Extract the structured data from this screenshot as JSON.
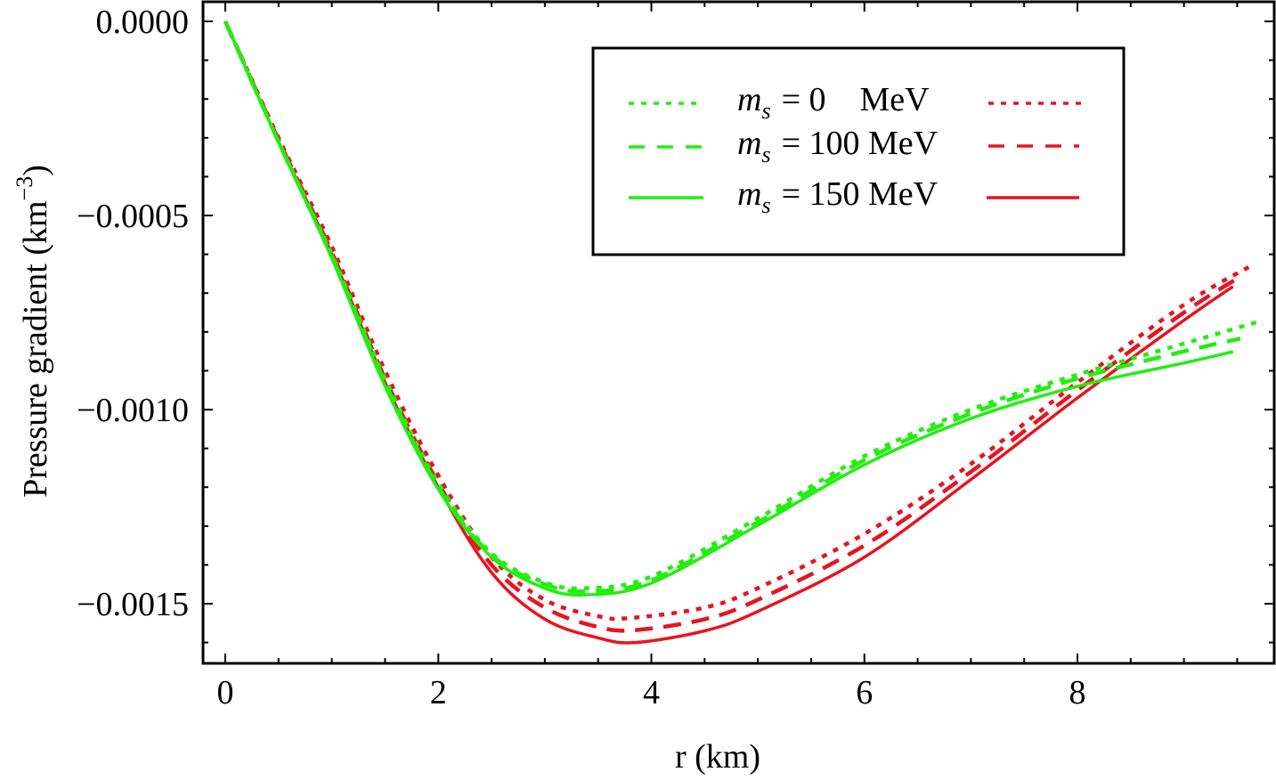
{
  "chart_data": {
    "type": "line",
    "title": "",
    "xlabel": "r (km)",
    "ylabel": "Pressure gradient (km^-3)",
    "ylabel_parts": {
      "main": "Pressure gradient (km",
      "sup": "−3",
      "close": ")"
    },
    "xlim": [
      -0.1,
      9.75
    ],
    "ylim": [
      -0.00165,
      5e-05
    ],
    "x_ticks": [
      0,
      2,
      4,
      6,
      8
    ],
    "x_tick_labels": [
      "0",
      "2",
      "4",
      "6",
      "8"
    ],
    "y_ticks": [
      0.0,
      -0.0005,
      -0.001,
      -0.0015
    ],
    "y_tick_labels": [
      "0.0000",
      "−0.0005",
      "−0.0010",
      "−0.0015"
    ],
    "grid": false,
    "legend_position": "top-right",
    "colors": {
      "green": "#22ee11",
      "red": "#e8141e",
      "axis": "#000000"
    },
    "legend": [
      {
        "symbol": "m",
        "subscript": "s",
        "text": "= 0    MeV",
        "left_style": "dotted",
        "right_style": "dotted"
      },
      {
        "symbol": "m",
        "subscript": "s",
        "text": "= 100 MeV",
        "left_style": "dashed",
        "right_style": "dashed"
      },
      {
        "symbol": "m",
        "subscript": "s",
        "text": "= 150 MeV",
        "left_style": "solid",
        "right_style": "solid"
      }
    ],
    "series": [
      {
        "name": "green m_s = 0 MeV",
        "color": "green",
        "style": "dotted",
        "x": [
          0,
          0.5,
          1,
          1.5,
          2,
          2.5,
          3,
          3.4,
          4,
          5,
          6,
          7,
          8,
          9,
          9.68
        ],
        "y": [
          0,
          -0.00031,
          -0.0006,
          -0.00092,
          -0.00119,
          -0.00137,
          -0.001445,
          -0.00146,
          -0.00143,
          -0.00128,
          -0.00112,
          -0.001,
          -0.00091,
          -0.00083,
          -0.000775
        ]
      },
      {
        "name": "green m_s = 100 MeV",
        "color": "green",
        "style": "dashed",
        "x": [
          0,
          0.5,
          1,
          1.5,
          2,
          2.5,
          3,
          3.4,
          4,
          5,
          6,
          7,
          8,
          9,
          9.53
        ],
        "y": [
          0,
          -0.00031,
          -0.000605,
          -0.00093,
          -0.0012,
          -0.001375,
          -0.00145,
          -0.001468,
          -0.00144,
          -0.00129,
          -0.00113,
          -0.00101,
          -0.00092,
          -0.00085,
          -0.000817
        ]
      },
      {
        "name": "green m_s = 150 MeV",
        "color": "green",
        "style": "solid",
        "x": [
          0,
          0.5,
          1,
          1.5,
          2,
          2.5,
          3,
          3.4,
          4,
          5,
          6,
          7,
          8,
          9,
          9.46
        ],
        "y": [
          0,
          -0.000312,
          -0.00061,
          -0.00094,
          -0.001205,
          -0.00138,
          -0.00146,
          -0.001477,
          -0.001447,
          -0.001298,
          -0.001142,
          -0.001023,
          -0.00094,
          -0.00088,
          -0.000851
        ]
      },
      {
        "name": "red m_s = 0 MeV",
        "color": "red",
        "style": "dotted",
        "x": [
          0,
          0.5,
          1,
          1.5,
          2,
          2.5,
          3,
          3.5,
          3.8,
          4.5,
          5,
          6,
          7,
          8,
          9,
          9.64
        ],
        "y": [
          0,
          -0.0003,
          -0.00058,
          -0.0009,
          -0.00117,
          -0.00138,
          -0.00149,
          -0.001532,
          -0.001537,
          -0.00151,
          -0.00146,
          -0.00132,
          -0.00114,
          -0.00093,
          -0.00073,
          -0.000628
        ]
      },
      {
        "name": "red m_s = 100 MeV",
        "color": "red",
        "style": "dashed",
        "x": [
          0,
          0.5,
          1,
          1.5,
          2,
          2.5,
          3,
          3.5,
          3.85,
          4.5,
          5,
          6,
          7,
          8,
          9,
          9.54
        ],
        "y": [
          0,
          -0.000305,
          -0.000595,
          -0.00092,
          -0.00119,
          -0.0014,
          -0.00151,
          -0.00156,
          -0.001568,
          -0.00154,
          -0.00149,
          -0.00135,
          -0.00116,
          -0.00095,
          -0.00075,
          -0.000656
        ]
      },
      {
        "name": "red m_s = 150 MeV",
        "color": "red",
        "style": "solid",
        "x": [
          0,
          0.5,
          1,
          1.5,
          2,
          2.5,
          3,
          3.5,
          3.85,
          4.5,
          5,
          6,
          7,
          8,
          9,
          9.46
        ],
        "y": [
          0,
          -0.00031,
          -0.0006,
          -0.00093,
          -0.0012,
          -0.00142,
          -0.00154,
          -0.001588,
          -0.0016,
          -0.00157,
          -0.00152,
          -0.00138,
          -0.00118,
          -0.00097,
          -0.00077,
          -0.000683
        ]
      }
    ]
  }
}
